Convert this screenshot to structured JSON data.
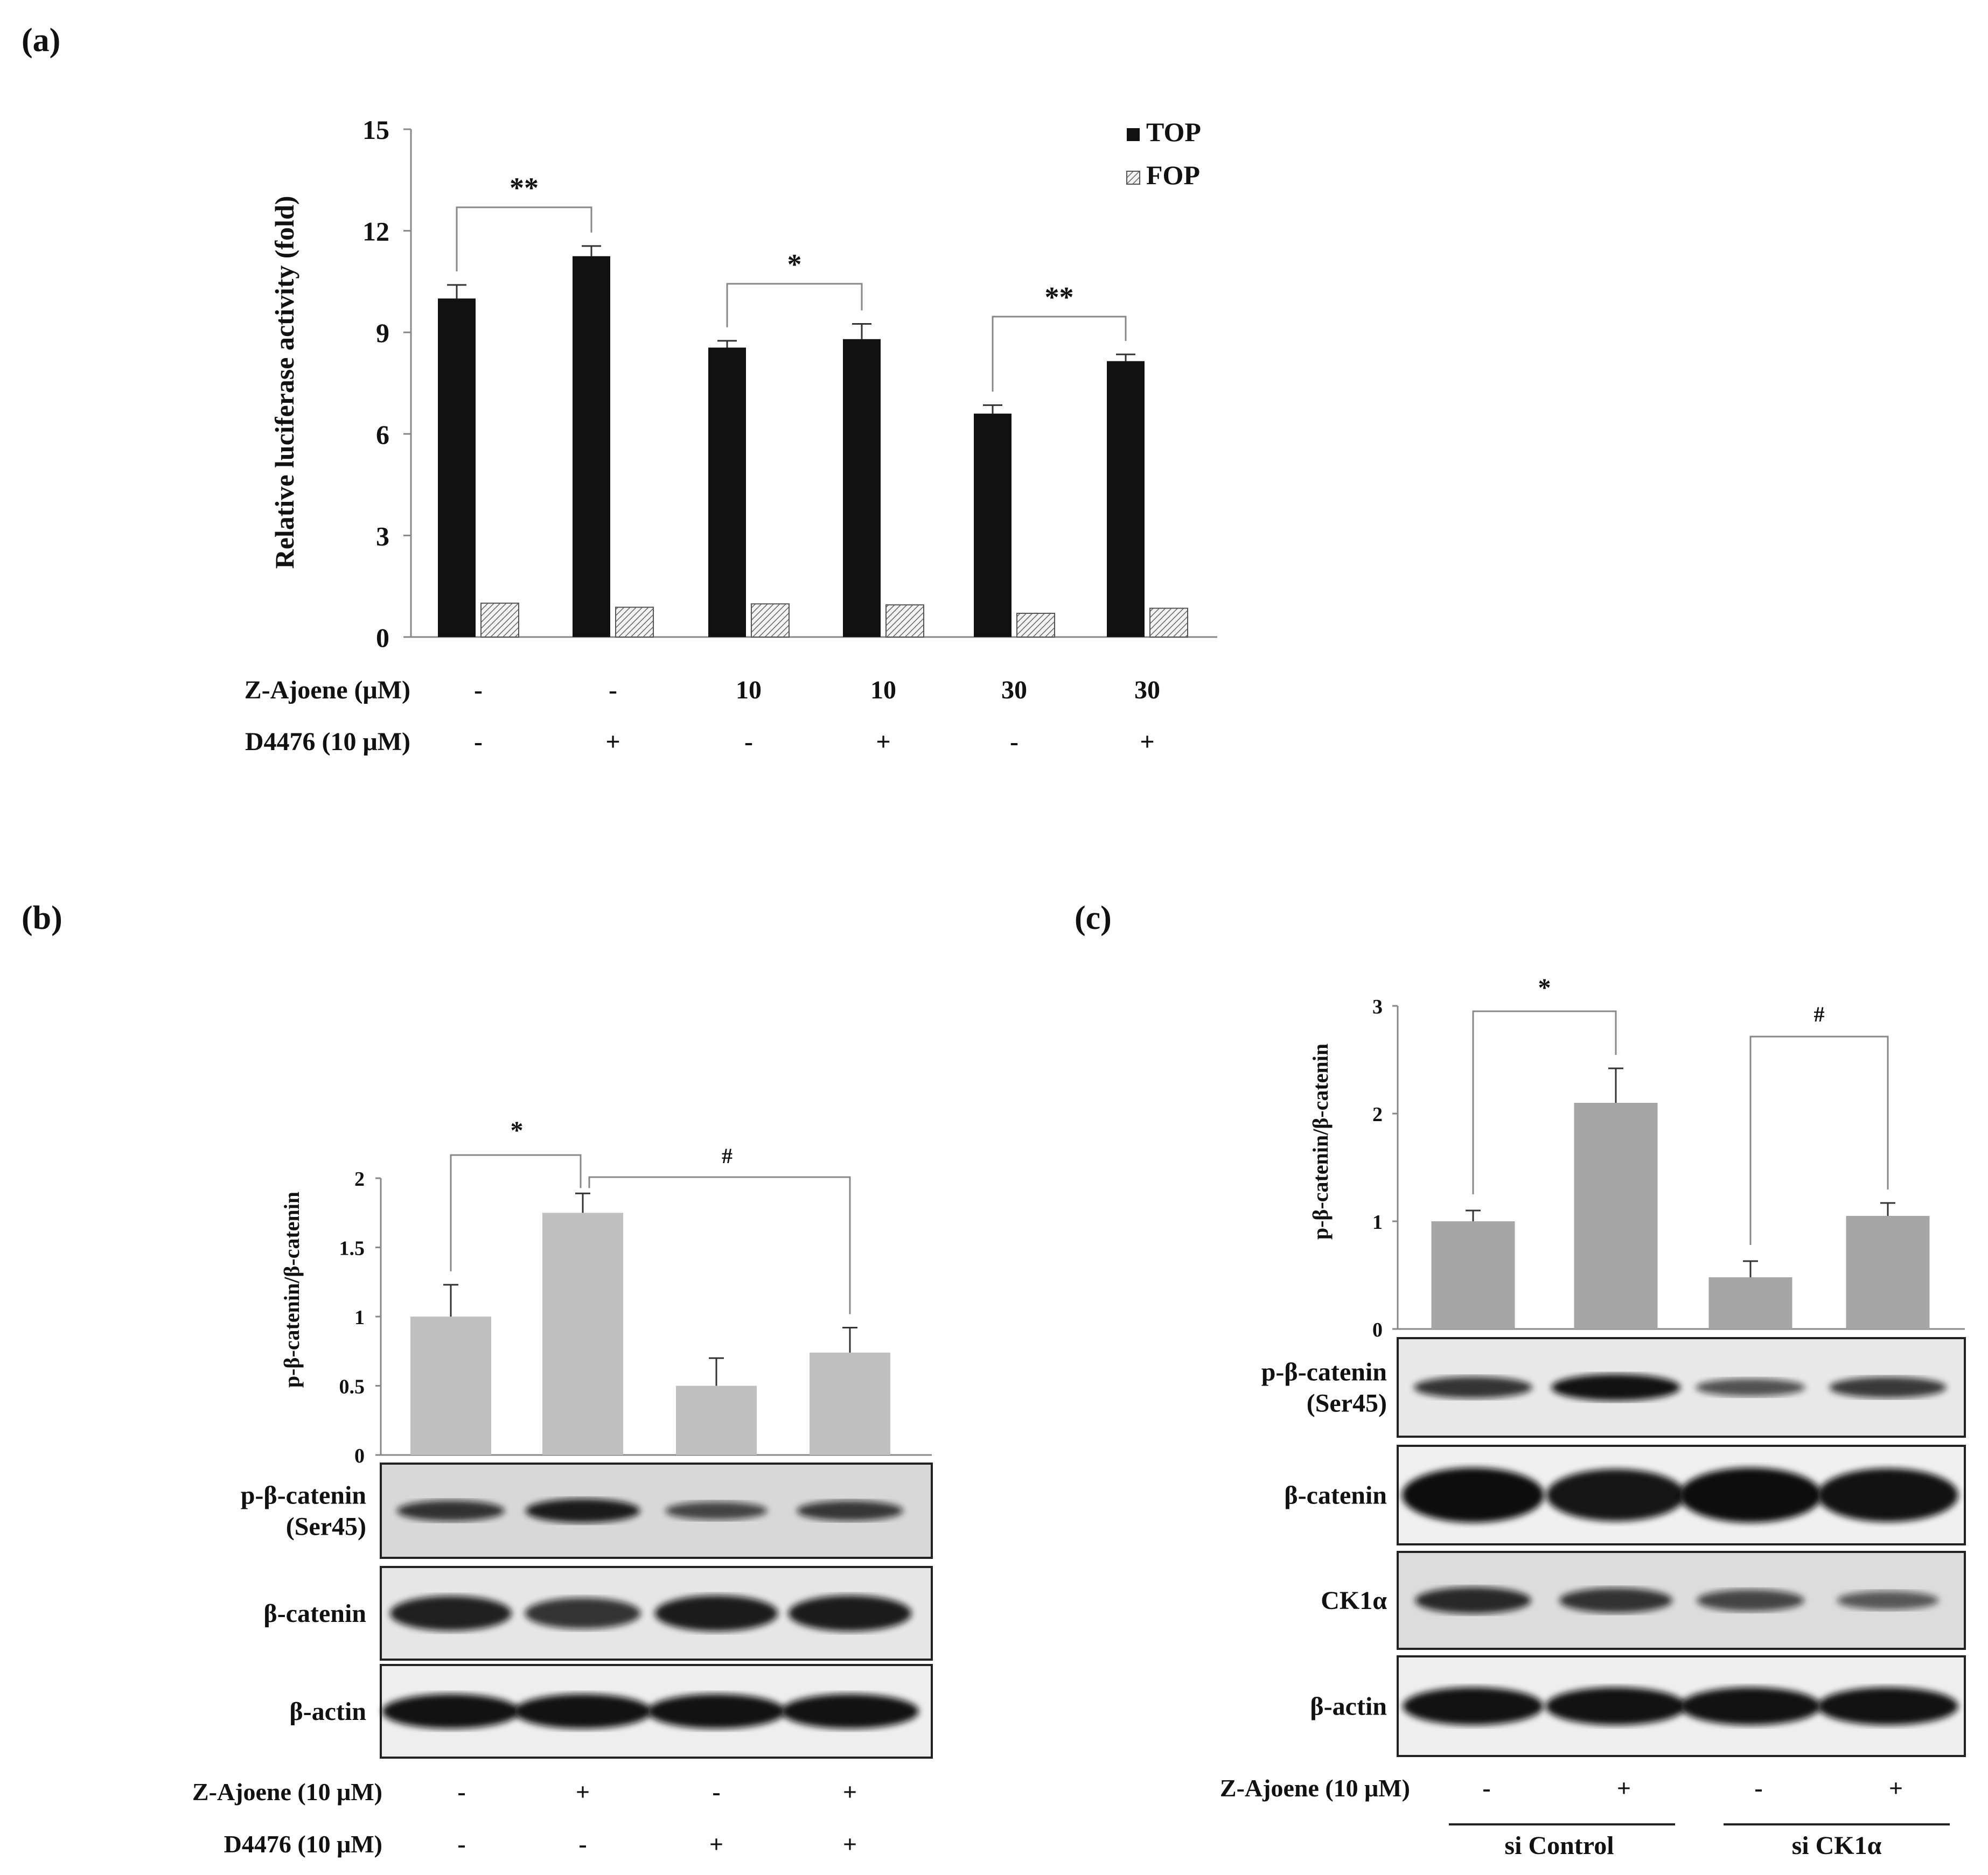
{
  "chart_data": [
    {
      "panel": "(a)",
      "type": "bar",
      "ylabel": "Relative luciferase activity (fold)",
      "yticks": [
        "0",
        "3",
        "6",
        "9",
        "12",
        "15"
      ],
      "ylim": [
        0,
        15
      ],
      "legend": [
        "TOP",
        "FOP"
      ],
      "legend_position": "top-right",
      "series": [
        {
          "name": "TOP",
          "values": [
            10.0,
            11.25,
            8.55,
            8.8,
            6.6,
            8.15
          ],
          "errors": [
            0.4,
            0.3,
            0.2,
            0.45,
            0.25,
            0.2
          ]
        },
        {
          "name": "FOP",
          "values": [
            1.0,
            0.88,
            0.98,
            0.95,
            0.7,
            0.85
          ]
        }
      ],
      "significance": [
        {
          "from": 0,
          "to": 1,
          "label": "**"
        },
        {
          "from": 2,
          "to": 3,
          "label": "*"
        },
        {
          "from": 4,
          "to": 5,
          "label": "**"
        }
      ],
      "conditions": [
        {
          "label": "Z-Ajoene (μM)",
          "values": [
            "-",
            "-",
            "10",
            "10",
            "30",
            "30"
          ]
        },
        {
          "label": "D4476 (10 μM)",
          "values": [
            "-",
            "+",
            "-",
            "+",
            "-",
            "+"
          ]
        }
      ]
    },
    {
      "panel": "(b)",
      "type": "bar",
      "ylabel": "p-β-catenin/β-catenin",
      "yticks": [
        "0",
        "0.5",
        "1",
        "1.5",
        "2"
      ],
      "ylim": [
        0,
        2
      ],
      "series": [
        {
          "values": [
            1.0,
            1.75,
            0.5,
            0.74
          ],
          "errors": [
            0.23,
            0.14,
            0.2,
            0.18
          ]
        }
      ],
      "significance": [
        {
          "from": 0,
          "to": 1,
          "label": "*"
        },
        {
          "from": 1,
          "to": 3,
          "label": "#"
        }
      ],
      "blots": [
        "p-β-catenin\n(Ser45)",
        "β-catenin",
        "β-actin"
      ],
      "conditions": [
        {
          "label": "Z-Ajoene (10 μM)",
          "values": [
            "-",
            "+",
            "-",
            "+"
          ]
        },
        {
          "label": "D4476 (10 μM)",
          "values": [
            "-",
            "-",
            "+",
            "+"
          ]
        }
      ]
    },
    {
      "panel": "(c)",
      "type": "bar",
      "ylabel": "p-β-catenin/β-catenin",
      "yticks": [
        "0",
        "1",
        "2",
        "3"
      ],
      "ylim": [
        0,
        3
      ],
      "series": [
        {
          "values": [
            1.0,
            2.1,
            0.48,
            1.05
          ],
          "errors": [
            0.1,
            0.32,
            0.15,
            0.12
          ]
        }
      ],
      "significance": [
        {
          "from": 0,
          "to": 1,
          "label": "*"
        },
        {
          "from": 2,
          "to": 3,
          "label": "#"
        }
      ],
      "blots": [
        "p-β-catenin\n(Ser45)",
        "β-catenin",
        "CK1α",
        "β-actin"
      ],
      "conditions": [
        {
          "label": "Z-Ajoene (10 μM)",
          "values": [
            "-",
            "+",
            "-",
            "+"
          ]
        }
      ],
      "groups": [
        "si Control",
        "si CK1α"
      ]
    }
  ]
}
